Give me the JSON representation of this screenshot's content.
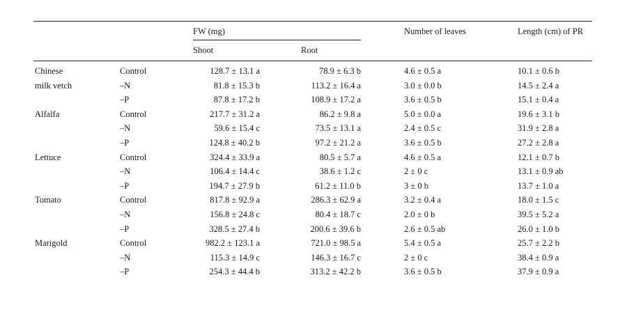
{
  "table": {
    "header": {
      "fw_label": "FW (mg)",
      "shoot_label": "Shoot",
      "root_label": "Root",
      "leaves_label": "Number of leaves",
      "length_label": "Length (cm) of PR"
    },
    "rows": [
      {
        "species": "Chinese",
        "treatment": "Control",
        "shoot": "128.7 ± 13.1 a",
        "root": "78.9 ± 6.3 b",
        "leaves": "4.6 ± 0.5 a",
        "length": "10.1 ± 0.6 b"
      },
      {
        "species": "milk vetch",
        "treatment": "–N",
        "shoot": "81.8 ± 15.3 b",
        "root": "113.2 ± 16.4 a",
        "leaves": "3.0 ± 0.0 b",
        "length": "14.5 ± 2.4 a"
      },
      {
        "species": "",
        "treatment": "–P",
        "shoot": "87.8 ± 17.2 b",
        "root": "108.9 ± 17.2 a",
        "leaves": "3.6 ± 0.5 b",
        "length": "15.1 ± 0.4 a"
      },
      {
        "species": "Alfalfa",
        "treatment": "Control",
        "shoot": "217.7 ± 31.2 a",
        "root": "86.2 ± 9.8 a",
        "leaves": "5.0 ± 0.0 a",
        "length": "19.6 ± 3.1 b"
      },
      {
        "species": "",
        "treatment": "–N",
        "shoot": "59.6 ± 15.4 c",
        "root": "73.5 ± 13.1 a",
        "leaves": "2.4 ± 0.5 c",
        "length": "31.9 ± 2.8 a"
      },
      {
        "species": "",
        "treatment": "–P",
        "shoot": "124.8 ± 40.2 b",
        "root": "97.2 ± 21.2 a",
        "leaves": "3.6 ± 0.5 b",
        "length": "27.2 ± 2.8 a"
      },
      {
        "species": "Lettuce",
        "treatment": "Control",
        "shoot": "324.4 ± 33.9 a",
        "root": "80.5 ± 5.7 a",
        "leaves": "4.6 ± 0.5 a",
        "length": "12.1 ± 0.7 b"
      },
      {
        "species": "",
        "treatment": "–N",
        "shoot": "106.4 ± 14.4 c",
        "root": "38.6 ± 1.2 c",
        "leaves": "2 ± 0 c",
        "length": "13.1 ± 0.9 ab"
      },
      {
        "species": "",
        "treatment": "–P",
        "shoot": "194.7 ± 27.9 b",
        "root": "61.2 ± 11.0 b",
        "leaves": "3 ± 0 b",
        "length": "13.7 ± 1.0 a"
      },
      {
        "species": "Tomato",
        "treatment": "Control",
        "shoot": "817.8 ± 92.9 a",
        "root": "286.3 ± 62.9 a",
        "leaves": "3.2 ± 0.4 a",
        "length": "18.0 ± 1.5 c"
      },
      {
        "species": "",
        "treatment": "–N",
        "shoot": "156.8 ± 24.8 c",
        "root": "80.4 ± 18.7 c",
        "leaves": "2.0 ± 0 b",
        "length": "39.5 ± 5.2 a"
      },
      {
        "species": "",
        "treatment": "–P",
        "shoot": "328.5 ± 27.4 b",
        "root": "200.6 ± 39.6 b",
        "leaves": "2.6 ± 0.5 ab",
        "length": "26.0 ± 1.0 b"
      },
      {
        "species": "Marigold",
        "treatment": "Control",
        "shoot": "982.2 ± 123.1 a",
        "root": "721.0 ± 98.5 a",
        "leaves": "5.4 ± 0.5 a",
        "length": "25.7 ± 2.2 b"
      },
      {
        "species": "",
        "treatment": "–N",
        "shoot": "115.3 ± 14.9 c",
        "root": "146.3 ± 16.7 c",
        "leaves": "2 ± 0 c",
        "length": "38.4 ± 0.9 a"
      },
      {
        "species": "",
        "treatment": "–P",
        "shoot": "254.3 ± 44.4 b",
        "root": "313.2 ± 42.2 b",
        "leaves": "3.6 ± 0.5 b",
        "length": "37.9 ± 0.9 a"
      }
    ]
  }
}
